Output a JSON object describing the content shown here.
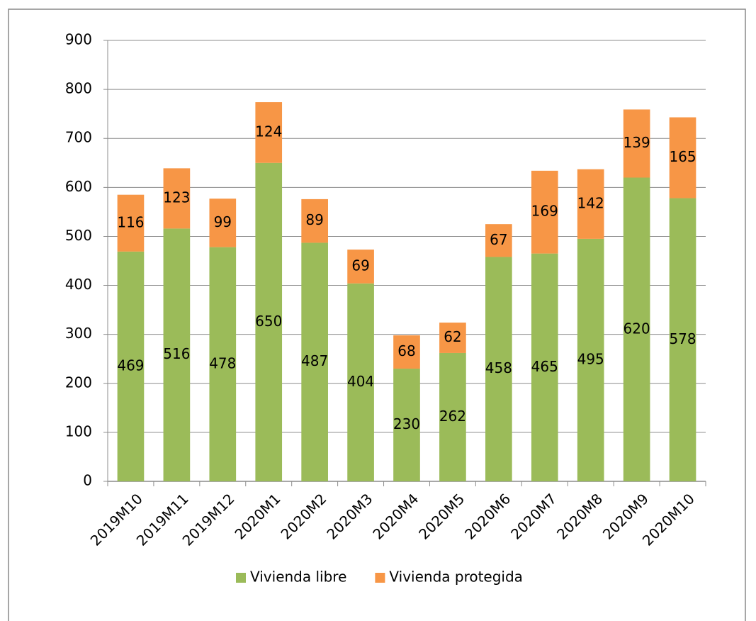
{
  "chart_data": {
    "type": "bar",
    "stacked": true,
    "categories": [
      "2019M10",
      "2019M11",
      "2019M12",
      "2020M1",
      "2020M2",
      "2020M3",
      "2020M4",
      "2020M5",
      "2020M6",
      "2020M7",
      "2020M8",
      "2020M9",
      "2020M10"
    ],
    "series": [
      {
        "name": "Vivienda libre",
        "color": "#9bbb59",
        "values": [
          469,
          516,
          478,
          650,
          487,
          404,
          230,
          262,
          458,
          465,
          495,
          620,
          578
        ]
      },
      {
        "name": "Vivienda protegida",
        "color": "#f79646",
        "values": [
          116,
          123,
          99,
          124,
          89,
          69,
          68,
          62,
          67,
          169,
          142,
          139,
          165
        ]
      }
    ],
    "ylim": [
      0,
      900
    ],
    "yticks": [
      0,
      100,
      200,
      300,
      400,
      500,
      600,
      700,
      800,
      900
    ],
    "grid": true,
    "legend": "bottom"
  }
}
